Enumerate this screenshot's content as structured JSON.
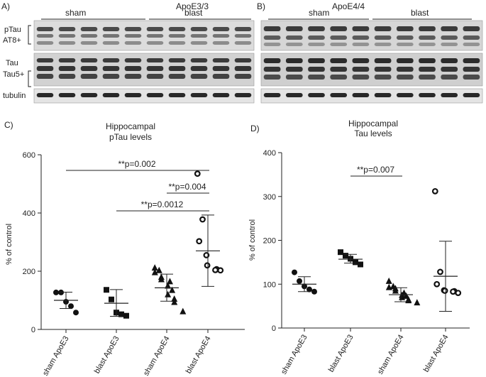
{
  "panels": {
    "a": {
      "letter": "A)",
      "genotype": "ApoE3/3",
      "groups": [
        "sham",
        "blast"
      ],
      "rows": [
        "pTau\nAT8+",
        "Tau\nTau5+",
        "tubulin"
      ]
    },
    "b": {
      "letter": "B)",
      "genotype": "ApoE4/4",
      "groups": [
        "sham",
        "blast"
      ]
    },
    "c": {
      "letter": "C)",
      "title_line1": "Hippocampal",
      "title_line2": "pTau levels",
      "ylabel": "% of control",
      "yticks": [
        "0",
        "200",
        "400",
        "600"
      ],
      "xticks": [
        "sham ApoE3",
        "blast ApoE3",
        "sham ApoE4",
        "blast ApoE4"
      ],
      "sig": [
        "**p=0.002",
        "**p=0.004",
        "**p=0.0012"
      ]
    },
    "d": {
      "letter": "D)",
      "title_line1": "Hippocampal",
      "title_line2": "Tau levels",
      "ylabel": "% of control",
      "yticks": [
        "0",
        "100",
        "200",
        "300",
        "400"
      ],
      "xticks": [
        "sham ApoE3",
        "blast ApoE3",
        "sham ApoE4",
        "blast ApoE4"
      ],
      "sig": [
        "**p=0.007"
      ]
    }
  },
  "chart_data": [
    {
      "type": "scatter",
      "title": "Hippocampal pTau levels",
      "ylabel": "% of control",
      "categories": [
        "sham ApoE3",
        "blast ApoE3",
        "sham ApoE4",
        "blast ApoE4"
      ],
      "ylim": [
        0,
        600
      ],
      "means": [
        100,
        90,
        143,
        270
      ],
      "sd_low": [
        72,
        45,
        97,
        148
      ],
      "sd_high": [
        128,
        137,
        190,
        393
      ],
      "markers": [
        "circle",
        "square",
        "triangle",
        "open-circle"
      ],
      "points": [
        [
          127,
          127,
          95,
          80,
          58
        ],
        [
          136,
          103,
          58,
          52,
          47
        ],
        [
          212,
          203,
          196,
          180,
          172,
          165,
          150,
          135,
          120,
          105,
          94,
          62
        ],
        [
          535,
          378,
          303,
          255,
          220,
          207,
          204,
          203
        ]
      ],
      "significance": [
        {
          "from": 0,
          "to": 3,
          "label": "**p=0.002"
        },
        {
          "from": 2,
          "to": 3,
          "label": "**p=0.004"
        },
        {
          "from": 1,
          "to": 3,
          "label": "**p=0.0012"
        }
      ]
    },
    {
      "type": "scatter",
      "title": "Hippocampal Tau levels",
      "ylabel": "% of control",
      "categories": [
        "sham ApoE3",
        "blast ApoE3",
        "sham ApoE4",
        "blast ApoE4"
      ],
      "ylim": [
        0,
        400
      ],
      "means": [
        100,
        157,
        76,
        118
      ],
      "sd_low": [
        83,
        148,
        60,
        38
      ],
      "sd_high": [
        117,
        168,
        92,
        198
      ],
      "markers": [
        "circle",
        "square",
        "triangle",
        "open-circle"
      ],
      "points": [
        [
          127,
          107,
          95,
          88,
          83
        ],
        [
          173,
          165,
          158,
          150,
          145
        ],
        [
          107,
          95,
          93,
          90,
          85,
          80,
          75,
          73,
          70,
          65,
          63,
          58
        ],
        [
          312,
          128,
          100,
          86,
          85,
          84,
          83,
          80
        ]
      ],
      "significance": [
        {
          "from": 1,
          "to": 2,
          "label": "**p=0.007"
        }
      ]
    }
  ]
}
